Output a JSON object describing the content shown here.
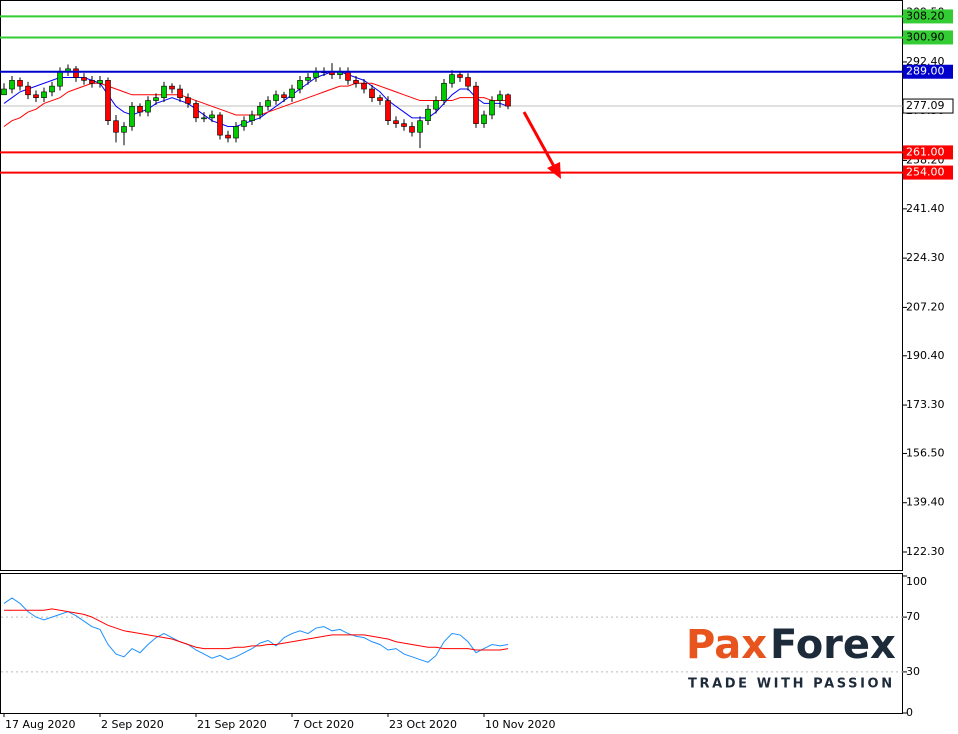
{
  "chart_data": [
    {
      "type": "candlestick",
      "categories": [
        "17 Aug 2020",
        null,
        null,
        null,
        null,
        null,
        null,
        null,
        null,
        null,
        null,
        null,
        "2 Sep 2020",
        null,
        null,
        null,
        null,
        null,
        null,
        null,
        null,
        null,
        null,
        null,
        "21 Sep 2020",
        null,
        null,
        null,
        null,
        null,
        null,
        null,
        null,
        null,
        null,
        null,
        "7 Oct 2020",
        null,
        null,
        null,
        null,
        null,
        null,
        null,
        null,
        null,
        null,
        null,
        "23 Oct 2020",
        null,
        null,
        null,
        null,
        null,
        null,
        null,
        null,
        null,
        null,
        null,
        "10 Nov 2020",
        null,
        null,
        null
      ],
      "open": [
        281,
        283,
        286,
        284,
        281,
        280,
        282,
        284,
        289,
        290,
        287,
        286,
        285,
        286,
        272,
        268,
        270,
        277,
        275,
        279,
        280,
        284,
        283,
        280,
        278,
        273,
        273,
        274,
        267,
        266,
        270,
        272,
        274,
        277,
        279,
        281,
        280,
        283,
        286,
        287,
        289,
        289,
        288,
        289,
        286,
        285,
        283,
        280,
        279,
        272,
        271,
        270,
        268,
        272,
        276,
        279,
        285,
        288,
        287,
        284,
        271,
        274,
        279,
        281
      ],
      "high": [
        285,
        287.5,
        287,
        285.5,
        282.5,
        283.5,
        285.5,
        290.5,
        291.5,
        291,
        288.5,
        287.5,
        287.5,
        287,
        274,
        271.5,
        278.5,
        278,
        280.5,
        281.5,
        285.5,
        285,
        284.5,
        281.5,
        279,
        275,
        275.5,
        275,
        268.5,
        271.5,
        273.5,
        275.5,
        278.5,
        280.5,
        282.5,
        282,
        284.5,
        287.5,
        288.5,
        290.5,
        290.5,
        292,
        290.5,
        290.5,
        287.5,
        286.5,
        284.5,
        281,
        280.5,
        273.5,
        272.5,
        271.5,
        273.5,
        277.5,
        280.5,
        286.5,
        289.5,
        289,
        288.5,
        285.5,
        275.5,
        280.5,
        282.5,
        281.5
      ],
      "low": [
        281.5,
        281.5,
        282.5,
        279.5,
        278.5,
        278.5,
        280.5,
        282.5,
        287.5,
        285.5,
        284.5,
        283.5,
        283.5,
        270.5,
        264.5,
        263.5,
        268.5,
        273.5,
        273.5,
        277.5,
        278.5,
        281.5,
        278.5,
        276.5,
        271.5,
        271.5,
        271.5,
        265.5,
        264.5,
        264.5,
        268.5,
        270.5,
        272.5,
        275.5,
        277.5,
        278.5,
        278.5,
        281.5,
        284.5,
        285.5,
        287.5,
        286.5,
        286.5,
        284.5,
        283.5,
        281.5,
        278.5,
        277.5,
        270.5,
        269.5,
        268.5,
        266.5,
        262.5,
        270.5,
        274.5,
        277.5,
        283.5,
        285.5,
        282.5,
        269.5,
        269.5,
        272.5,
        276.5,
        276
      ],
      "close": [
        283,
        286,
        284,
        281,
        280,
        282,
        284,
        289,
        290,
        287,
        286,
        285,
        286,
        272,
        268,
        270,
        277,
        275,
        279,
        280,
        284,
        283,
        280,
        278,
        273,
        273,
        274,
        267,
        266,
        270,
        272,
        274,
        277,
        279,
        281,
        280,
        283,
        286,
        287,
        289,
        289,
        288,
        289,
        286,
        285,
        283,
        280,
        279,
        272,
        271,
        270,
        268,
        272,
        276,
        279,
        285,
        288,
        287,
        284,
        271,
        274,
        279,
        281,
        277.09
      ],
      "up_color": "#00cc00",
      "down_color": "#ff0000",
      "series": [
        {
          "color": "#0000ff",
          "values": [
            278,
            280,
            282,
            283,
            284,
            285,
            286,
            287,
            287,
            287,
            287,
            286,
            285,
            281,
            277,
            275,
            274,
            275,
            276,
            278,
            279,
            280,
            279,
            278,
            276,
            274,
            272,
            271,
            270,
            270,
            271,
            272,
            273,
            275,
            277,
            279,
            281,
            283,
            285,
            287,
            288,
            289,
            289,
            288,
            287,
            286,
            284,
            282,
            279,
            277,
            275,
            273,
            273,
            273,
            275,
            278,
            281,
            283,
            283,
            280,
            278,
            278,
            278,
            277
          ]
        },
        {
          "color": "#ff0000",
          "values": [
            270,
            272,
            273,
            275,
            276,
            278,
            279,
            280,
            282,
            283,
            284,
            285,
            285,
            284,
            283,
            282,
            281,
            281,
            281,
            281,
            281,
            281,
            281,
            280,
            279,
            278,
            277,
            276,
            275,
            274,
            274,
            274,
            274,
            275,
            276,
            277,
            278,
            279,
            280,
            281,
            282,
            283,
            284,
            284,
            285,
            285,
            285,
            284,
            283,
            282,
            281,
            280,
            279,
            279,
            279,
            279,
            279,
            280,
            280,
            280,
            280,
            279,
            279,
            279
          ]
        }
      ],
      "ylim": [
        116.05,
        313.9
      ],
      "yticks": [
        {
          "value": 122.3,
          "label": "122.30"
        },
        {
          "value": 139.4,
          "label": "139.40"
        },
        {
          "value": 156.5,
          "label": "156.50"
        },
        {
          "value": 173.3,
          "label": "173.30"
        },
        {
          "value": 190.4,
          "label": "190.40"
        },
        {
          "value": 207.2,
          "label": "207.20"
        },
        {
          "value": 224.3,
          "label": "224.30"
        },
        {
          "value": 241.4,
          "label": "241.40"
        },
        {
          "value": 258.2,
          "label": "258.20"
        },
        {
          "value": 275.3,
          "label": "275.30"
        },
        {
          "value": 292.4,
          "label": "292.40"
        },
        {
          "value": 309.5,
          "label": "309.50"
        }
      ],
      "levels": [
        {
          "value": 308.2,
          "label": "308.20",
          "color": "#33cc33",
          "text_color": "#000000"
        },
        {
          "value": 300.9,
          "label": "300.90",
          "color": "#33cc33",
          "text_color": "#000000"
        },
        {
          "value": 289,
          "label": "289.00",
          "color": "#0000cc",
          "text_color": "#ffffff"
        },
        {
          "value": 261,
          "label": "261.00",
          "color": "#ff0000",
          "text_color": "#ffffff"
        },
        {
          "value": 254,
          "label": "254.00",
          "color": "#ff0000",
          "text_color": "#ffffff"
        }
      ],
      "last_price": {
        "value": 277.09,
        "label": "277.09"
      }
    },
    {
      "type": "line",
      "series": [
        {
          "color": "#1e90ff",
          "values": [
            80,
            84,
            80,
            74,
            70,
            68,
            70,
            72,
            74,
            71,
            67,
            63,
            61,
            50,
            43,
            41,
            47,
            44,
            50,
            55,
            58,
            55,
            52,
            50,
            46,
            43,
            40,
            42,
            39,
            41,
            44,
            47,
            51,
            53,
            49,
            55,
            58,
            60,
            58,
            62,
            63,
            60,
            61,
            58,
            56,
            55,
            52,
            50,
            46,
            47,
            43,
            41,
            39,
            37,
            42,
            52,
            58,
            57,
            52,
            44,
            47,
            50,
            49,
            50
          ]
        },
        {
          "color": "#ff0000",
          "values": [
            75,
            75,
            75,
            75,
            75,
            75,
            76,
            75,
            74,
            73,
            72,
            70,
            67,
            64,
            62,
            60,
            59,
            58,
            57,
            56,
            55,
            54,
            52,
            50,
            48,
            47,
            47,
            47,
            47,
            48,
            48,
            49,
            49,
            50,
            50,
            51,
            52,
            53,
            54,
            55,
            56,
            57,
            57,
            57,
            57,
            57,
            56,
            55,
            54,
            52,
            51,
            50,
            49,
            48,
            48,
            47,
            47,
            47,
            47,
            46,
            46,
            46,
            46,
            47
          ]
        }
      ],
      "ylim": [
        0,
        100
      ],
      "yticks": [
        0,
        30,
        70,
        100
      ]
    }
  ],
  "logo": {
    "brand_start": "Pax",
    "brand_end": "Forex",
    "tagline": "TRADE WITH PASSION"
  }
}
